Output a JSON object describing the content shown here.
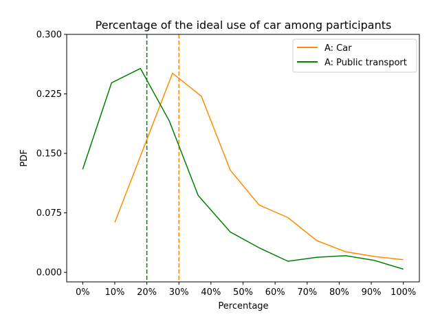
{
  "chart_data": {
    "type": "line",
    "title": "Percentage of the ideal use of car among participants",
    "xlabel": "Percentage",
    "ylabel": "PDF",
    "xlim": [
      -0.05,
      1.05
    ],
    "ylim": [
      -0.012,
      0.3
    ],
    "x_ticks": [
      0,
      0.1,
      0.2,
      0.3,
      0.4,
      0.5,
      0.6,
      0.7,
      0.8,
      0.9,
      1.0
    ],
    "x_tick_labels": [
      "0%",
      "10%",
      "20%",
      "30%",
      "40%",
      "50%",
      "60%",
      "70%",
      "80%",
      "90%",
      "100%"
    ],
    "y_ticks": [
      0.0,
      0.075,
      0.15,
      0.225,
      0.3
    ],
    "y_tick_labels": [
      "0.000",
      "0.075",
      "0.150",
      "0.225",
      "0.300"
    ],
    "grid": false,
    "legend_position": "top-right",
    "series": [
      {
        "name": "A: Car",
        "color": "#ff8c00",
        "x": [
          0.1,
          0.28,
          0.37,
          0.46,
          0.55,
          0.64,
          0.73,
          0.82,
          0.91,
          1.0
        ],
        "y": [
          0.063,
          0.251,
          0.222,
          0.129,
          0.085,
          0.069,
          0.04,
          0.026,
          0.02,
          0.016
        ]
      },
      {
        "name": "A: Public transport",
        "color": "#008000",
        "x": [
          0.0,
          0.09,
          0.18,
          0.27,
          0.36,
          0.46,
          0.55,
          0.64,
          0.73,
          0.82,
          0.91,
          1.0
        ],
        "y": [
          0.13,
          0.239,
          0.257,
          0.191,
          0.097,
          0.051,
          0.031,
          0.014,
          0.019,
          0.021,
          0.015,
          0.004
        ]
      }
    ],
    "vlines": [
      {
        "x": 0.2,
        "color": "#008000",
        "style": "dashed"
      },
      {
        "x": 0.3,
        "color": "#ff8c00",
        "style": "dashed"
      }
    ]
  }
}
